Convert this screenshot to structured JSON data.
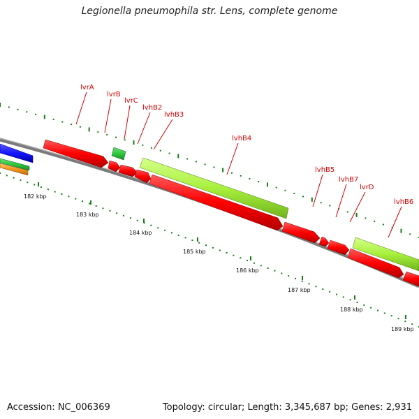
{
  "title": "Legionella pneumophila str. Lens, complete genome",
  "footer": {
    "accession": "Accession: NC_006369",
    "stats": "Topology: circular; Length: 3,345,687 bp; Genes: 2,931"
  },
  "kbp_labels": [
    "182 kbp",
    "183 kbp",
    "184 kbp",
    "185 kbp",
    "186 kbp",
    "187 kbp",
    "188 kbp",
    "189 kbp"
  ],
  "gene_labels": [
    "lvrA",
    "lvrB",
    "lvrC",
    "lvhB2",
    "lvhB3",
    "lvhB4",
    "lvhB5",
    "lvhB7",
    "lvrD",
    "lvhB6"
  ],
  "colors": {
    "cds_red": "#ff0000",
    "lime": "#a8f03c",
    "green": "#2dc83c",
    "blue": "#1414ff",
    "orange": "#f0961e",
    "backbone": "#7a7a7a",
    "tick_green": "#1a7a1a",
    "label_red": "#d40000"
  }
}
